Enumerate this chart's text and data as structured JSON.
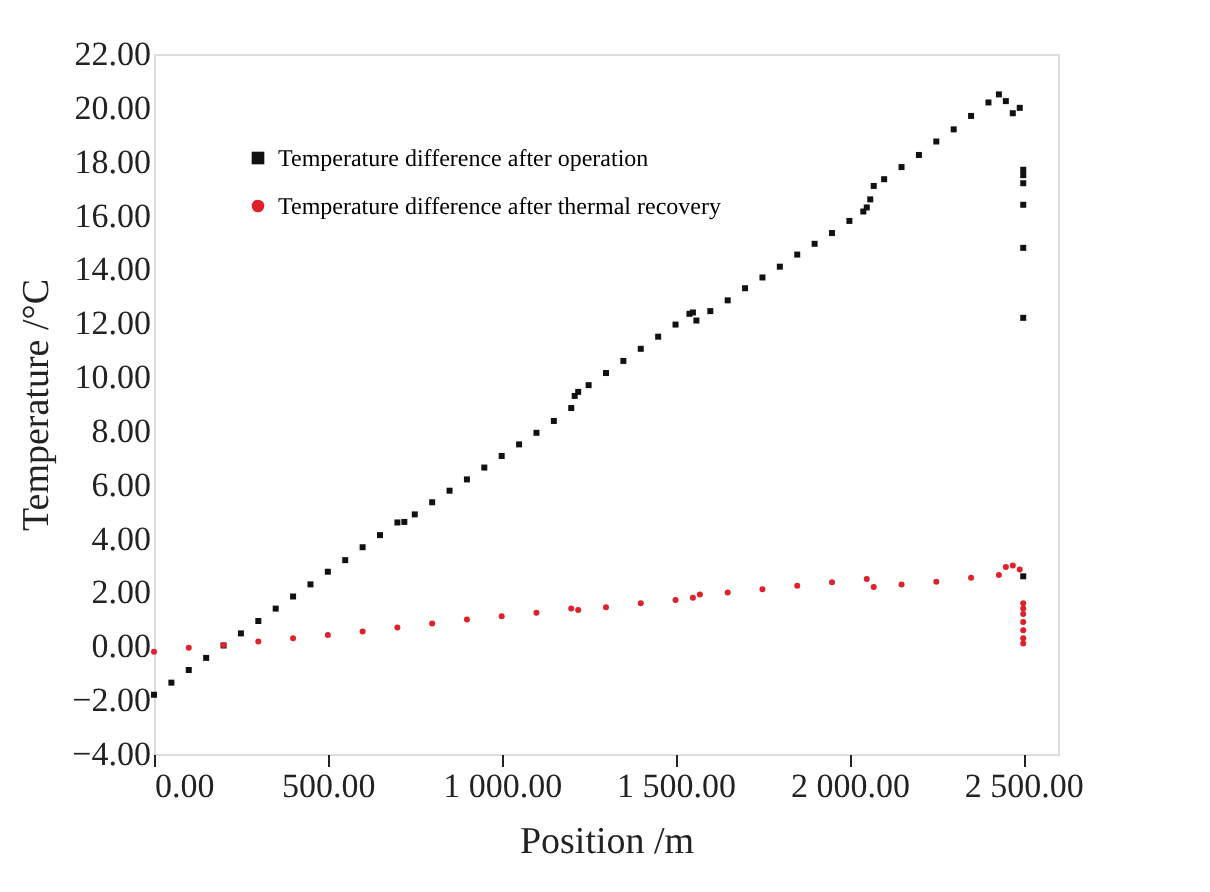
{
  "chart_data": {
    "type": "scatter",
    "xlabel": "Position /m",
    "ylabel": "Temperature /°C",
    "xlim": [
      0,
      2600
    ],
    "ylim": [
      -4,
      22
    ],
    "xticks": [
      {
        "value": 0,
        "label": "0.00"
      },
      {
        "value": 500,
        "label": "500.00"
      },
      {
        "value": 1000,
        "label": "1 000.00"
      },
      {
        "value": 1500,
        "label": "1 500.00"
      },
      {
        "value": 2000,
        "label": "2 000.00"
      },
      {
        "value": 2500,
        "label": "2 500.00"
      }
    ],
    "yticks": [
      {
        "value": -4,
        "label": "−4.00"
      },
      {
        "value": -2,
        "label": "−2.00"
      },
      {
        "value": 0,
        "label": "0.00"
      },
      {
        "value": 2,
        "label": "2.00"
      },
      {
        "value": 4,
        "label": "4.00"
      },
      {
        "value": 6,
        "label": "6.00"
      },
      {
        "value": 8,
        "label": "8.00"
      },
      {
        "value": 10,
        "label": "10.00"
      },
      {
        "value": 12,
        "label": "12.00"
      },
      {
        "value": 14,
        "label": "14.00"
      },
      {
        "value": 16,
        "label": "16.00"
      },
      {
        "value": 18,
        "label": "18.00"
      },
      {
        "value": 20,
        "label": "20.00"
      },
      {
        "value": 22,
        "label": "22.00"
      }
    ],
    "grid": false,
    "legend": "top left",
    "series": [
      {
        "name": "Temperature difference after operation",
        "color": "#111111",
        "marker": "square",
        "x": [
          0,
          50,
          100,
          150,
          200,
          250,
          300,
          350,
          400,
          450,
          500,
          550,
          600,
          650,
          700,
          720,
          750,
          800,
          850,
          900,
          950,
          1000,
          1050,
          1100,
          1150,
          1200,
          1210,
          1220,
          1250,
          1300,
          1350,
          1400,
          1450,
          1500,
          1540,
          1550,
          1560,
          1600,
          1650,
          1700,
          1750,
          1800,
          1850,
          1900,
          1950,
          2000,
          2040,
          2050,
          2060,
          2070,
          2100,
          2150,
          2200,
          2250,
          2300,
          2350,
          2400,
          2430,
          2450,
          2470,
          2490,
          2500,
          2500,
          2500,
          2500,
          2500,
          2500,
          2500
        ],
        "values": [
          -1.8,
          -1.35,
          -0.88,
          -0.43,
          0.03,
          0.48,
          0.94,
          1.4,
          1.85,
          2.3,
          2.77,
          3.2,
          3.68,
          4.13,
          4.6,
          4.62,
          4.9,
          5.35,
          5.78,
          6.2,
          6.64,
          7.07,
          7.5,
          7.93,
          8.37,
          8.85,
          9.3,
          9.45,
          9.7,
          10.15,
          10.6,
          11.05,
          11.5,
          11.95,
          12.35,
          12.4,
          12.1,
          12.45,
          12.85,
          13.3,
          13.7,
          14.1,
          14.55,
          14.95,
          15.35,
          15.8,
          16.15,
          16.3,
          16.6,
          17.1,
          17.35,
          17.8,
          18.25,
          18.75,
          19.2,
          19.7,
          20.2,
          20.5,
          20.25,
          19.8,
          20.0,
          17.7,
          17.5,
          17.2,
          16.4,
          14.8,
          12.2,
          2.6
        ]
      },
      {
        "name": "Temperature difference after thermal recovery",
        "color": "#e0202a",
        "marker": "circle",
        "x": [
          0,
          100,
          200,
          300,
          400,
          500,
          600,
          700,
          800,
          900,
          1000,
          1100,
          1200,
          1220,
          1300,
          1400,
          1500,
          1550,
          1570,
          1650,
          1750,
          1850,
          1950,
          2050,
          2070,
          2150,
          2250,
          2350,
          2430,
          2450,
          2470,
          2490,
          2500,
          2500,
          2500,
          2500,
          2500,
          2500,
          2500
        ],
        "values": [
          -0.2,
          -0.05,
          0.05,
          0.18,
          0.3,
          0.42,
          0.55,
          0.7,
          0.85,
          1.0,
          1.12,
          1.25,
          1.4,
          1.35,
          1.45,
          1.6,
          1.72,
          1.8,
          1.92,
          2.0,
          2.12,
          2.25,
          2.38,
          2.5,
          2.2,
          2.3,
          2.4,
          2.55,
          2.65,
          2.95,
          3.0,
          2.85,
          1.6,
          1.4,
          1.2,
          0.9,
          0.6,
          0.3,
          0.1
        ]
      }
    ]
  }
}
